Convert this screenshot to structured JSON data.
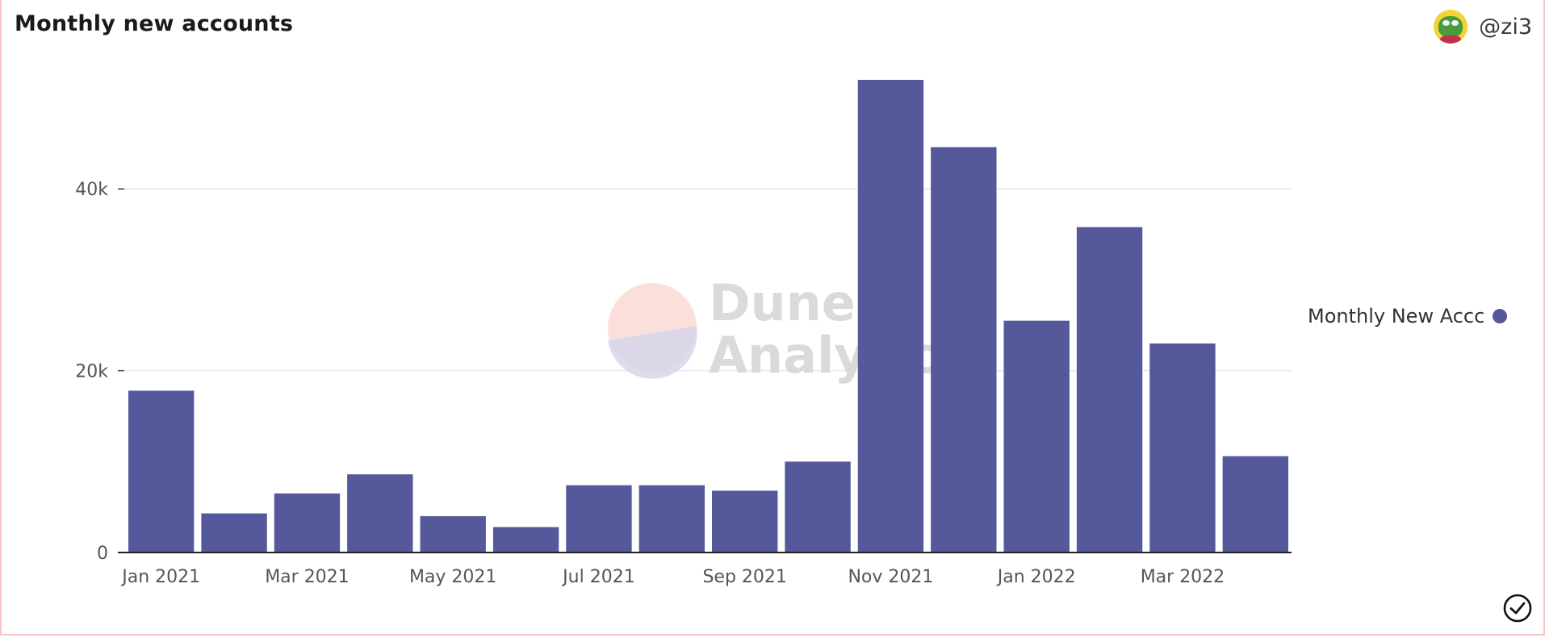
{
  "header": {
    "title": "Monthly new accounts",
    "username": "@zi3"
  },
  "watermark": {
    "line1": "Dune",
    "line2": "Analytics"
  },
  "icons": {
    "avatar": "frog-avatar-icon",
    "status": "check-circle-icon"
  },
  "colors": {
    "bar": "#55589a",
    "grid": "#e8e8e8",
    "axis": "#222222"
  },
  "chart_data": {
    "type": "bar",
    "title": "Monthly new accounts",
    "xlabel": "",
    "ylabel": "",
    "categories": [
      "Jan 2021",
      "Feb 2021",
      "Mar 2021",
      "Apr 2021",
      "May 2021",
      "Jun 2021",
      "Jul 2021",
      "Aug 2021",
      "Sep 2021",
      "Oct 2021",
      "Nov 2021",
      "Dec 2021",
      "Jan 2022",
      "Feb 2022",
      "Mar 2022",
      "Apr 2022"
    ],
    "x_tick_labels": [
      "Jan 2021",
      "Mar 2021",
      "May 2021",
      "Jul 2021",
      "Sep 2021",
      "Nov 2021",
      "Jan 2022",
      "Mar 2022"
    ],
    "y_ticks": [
      0,
      20000,
      40000
    ],
    "y_tick_labels": [
      "0",
      "20k",
      "40k"
    ],
    "ylim": [
      0,
      52000
    ],
    "grid": true,
    "legend_position": "right",
    "series": [
      {
        "name": "Monthly New Accc",
        "values": [
          17800,
          4300,
          6500,
          8600,
          4000,
          2800,
          7400,
          7400,
          6800,
          10000,
          52000,
          44600,
          25500,
          35800,
          23000,
          10600
        ]
      }
    ]
  }
}
